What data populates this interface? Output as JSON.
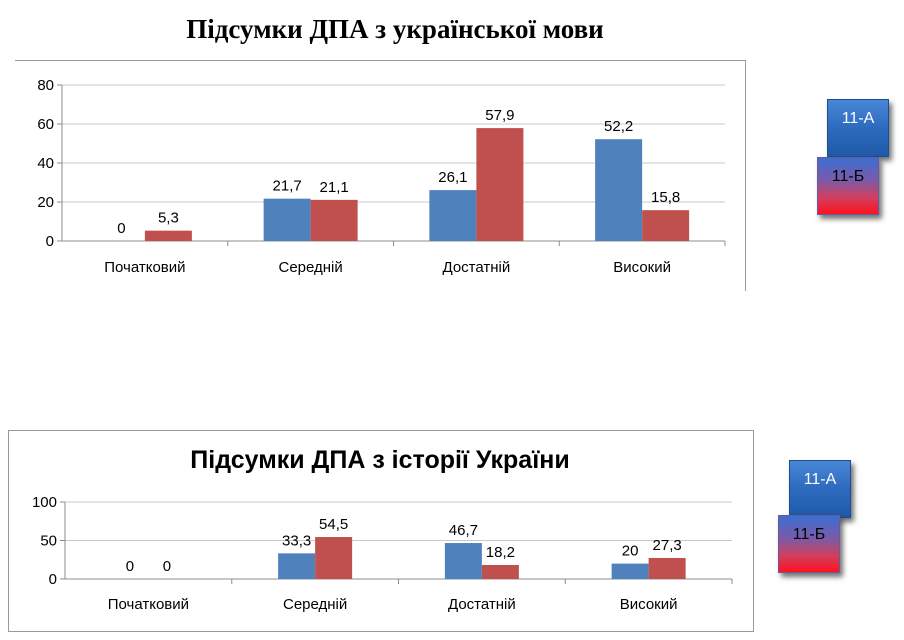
{
  "colors": {
    "series_a": "#4f81bd",
    "series_b": "#c0504d"
  },
  "legend": {
    "a": "11-А",
    "b": "11-Б"
  },
  "chart_data": [
    {
      "type": "bar",
      "title": "Підсумки ДПА з української мови",
      "categories": [
        "Початковий",
        "Середній",
        "Достатній",
        "Високий"
      ],
      "series": [
        {
          "name": "11-А",
          "values": [
            0,
            21.7,
            26.1,
            52.2
          ],
          "labels": [
            "0",
            "21,7",
            "26,1",
            "52,2"
          ]
        },
        {
          "name": "11-Б",
          "values": [
            5.3,
            21.1,
            57.9,
            15.8
          ],
          "labels": [
            "5,3",
            "21,1",
            "57,9",
            "15,8"
          ]
        }
      ],
      "ylim": [
        0,
        80
      ],
      "yticks": [
        "0",
        "20",
        "40",
        "60",
        "80"
      ],
      "grid": true,
      "legend_position": "right"
    },
    {
      "type": "bar",
      "title": "Підсумки ДПА з історії України",
      "categories": [
        "Початковий",
        "Середній",
        "Достатній",
        "Високий"
      ],
      "series": [
        {
          "name": "11-А",
          "values": [
            0,
            33.3,
            46.7,
            20
          ],
          "labels": [
            "0",
            "33,3",
            "46,7",
            "20"
          ]
        },
        {
          "name": "11-Б",
          "values": [
            0,
            54.5,
            18.2,
            27.3
          ],
          "labels": [
            "0",
            "54,5",
            "18,2",
            "27,3"
          ]
        }
      ],
      "ylim": [
        0,
        100
      ],
      "yticks": [
        "0",
        "50",
        "100"
      ],
      "grid": true,
      "legend_position": "right"
    }
  ]
}
